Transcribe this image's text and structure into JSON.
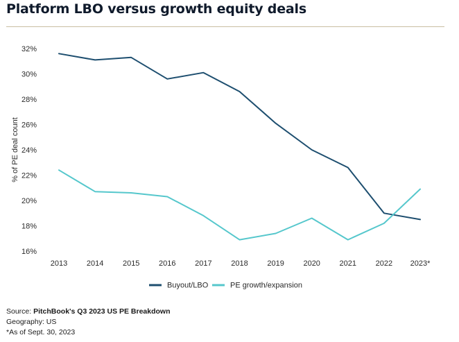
{
  "title": "Platform LBO versus growth equity deals",
  "footer": {
    "source_prefix": "Source: ",
    "source_name": "PitchBook's Q3 2023 US PE Breakdown",
    "geography": "Geography: US",
    "note": "*As of Sept. 30, 2023"
  },
  "colors": {
    "buyout": "#1d4e6f",
    "growth": "#55c7cc",
    "rule": "#c9bea1"
  },
  "chart_data": {
    "type": "line",
    "title": "Platform LBO versus growth equity deals",
    "ylabel": "% of PE deal count",
    "xlabel": "",
    "categories": [
      "2013",
      "2014",
      "2015",
      "2016",
      "2017",
      "2018",
      "2019",
      "2020",
      "2021",
      "2022",
      "2023*"
    ],
    "ylim": [
      16,
      32
    ],
    "yticks": [
      16,
      18,
      20,
      22,
      24,
      26,
      28,
      30,
      32
    ],
    "ytick_suffix": "%",
    "grid": false,
    "legend_position": "bottom-center",
    "series": [
      {
        "name": "Buyout/LBO",
        "color": "#1d4e6f",
        "values": [
          31.6,
          31.1,
          31.3,
          29.6,
          30.1,
          28.6,
          26.1,
          24.0,
          22.6,
          19.0,
          18.5
        ]
      },
      {
        "name": "PE growth/expansion",
        "color": "#55c7cc",
        "values": [
          22.4,
          20.7,
          20.6,
          20.3,
          18.8,
          16.9,
          17.4,
          18.6,
          16.9,
          18.2,
          20.9
        ]
      }
    ]
  }
}
